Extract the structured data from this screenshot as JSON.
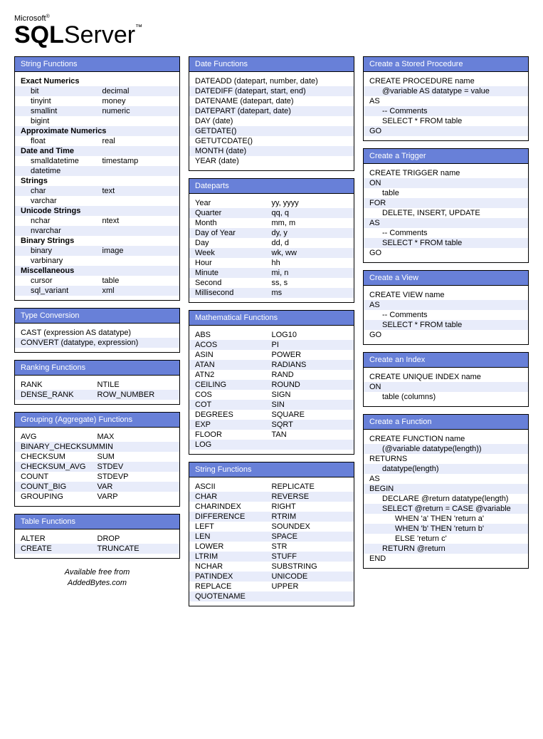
{
  "branding": {
    "ms": "Microsoft",
    "reg": "®",
    "sql": "SQL",
    "server": "Server",
    "tm": "™"
  },
  "colors": {
    "header_bg": "#6880d8",
    "stripe_bg": "#e8ecfa",
    "border": "#000000",
    "text": "#000000",
    "header_text": "#ffffff"
  },
  "columns": [
    [
      {
        "title": "String Functions",
        "groups": [
          {
            "label": "Exact Numerics",
            "rows": [
              [
                "bit",
                "decimal"
              ],
              [
                "tinyint",
                "money"
              ],
              [
                "smallint",
                "numeric"
              ],
              [
                "bigint",
                ""
              ]
            ],
            "indent": true
          },
          {
            "label": "Approximate Numerics",
            "rows": [
              [
                "float",
                "real"
              ]
            ],
            "indent": true
          },
          {
            "label": "Date and Time",
            "rows": [
              [
                "smalldatetime",
                "timestamp"
              ],
              [
                "datetime",
                ""
              ]
            ],
            "indent": true
          },
          {
            "label": "Strings",
            "rows": [
              [
                "char",
                "text"
              ],
              [
                "varchar",
                ""
              ]
            ],
            "indent": true
          },
          {
            "label": "Unicode Strings",
            "rows": [
              [
                "nchar",
                "ntext"
              ],
              [
                "nvarchar",
                ""
              ]
            ],
            "indent": true
          },
          {
            "label": "Binary Strings",
            "rows": [
              [
                "binary",
                "image"
              ],
              [
                "varbinary",
                ""
              ]
            ],
            "indent": true
          },
          {
            "label": "Miscellaneous",
            "rows": [
              [
                "cursor",
                "table"
              ],
              [
                "sql_variant",
                "xml"
              ]
            ],
            "indent": true
          }
        ]
      },
      {
        "title": "Type Conversion",
        "rows": [
          [
            "CAST (expression AS datatype)",
            ""
          ],
          [
            "CONVERT (datatype, expression)",
            ""
          ]
        ]
      },
      {
        "title": "Ranking Functions",
        "rows": [
          [
            "RANK",
            "NTILE"
          ],
          [
            "DENSE_RANK",
            "ROW_NUMBER"
          ]
        ]
      },
      {
        "title": "Grouping (Aggregate) Functions",
        "rows": [
          [
            "AVG",
            "MAX"
          ],
          [
            "BINARY_CHECKSUM",
            "MIN"
          ],
          [
            "CHECKSUM",
            "SUM"
          ],
          [
            "CHECKSUM_AVG",
            "STDEV"
          ],
          [
            "COUNT",
            "STDEVP"
          ],
          [
            "COUNT_BIG",
            "VAR"
          ],
          [
            "GROUPING",
            "VARP"
          ]
        ]
      },
      {
        "title": "Table Functions",
        "rows": [
          [
            "ALTER",
            "DROP"
          ],
          [
            "CREATE",
            "TRUNCATE"
          ]
        ]
      }
    ],
    [
      {
        "title": "Date Functions",
        "rows": [
          [
            "DATEADD (datepart, number, date)",
            ""
          ],
          [
            "DATEDIFF (datepart, start, end)",
            ""
          ],
          [
            "DATENAME (datepart, date)",
            ""
          ],
          [
            "DATEPART (datepart, date)",
            ""
          ],
          [
            "DAY (date)",
            ""
          ],
          [
            "GETDATE()",
            ""
          ],
          [
            "GETUTCDATE()",
            ""
          ],
          [
            "MONTH (date)",
            ""
          ],
          [
            "YEAR (date)",
            ""
          ]
        ]
      },
      {
        "title": "Dateparts",
        "rows": [
          [
            "Year",
            "yy, yyyy"
          ],
          [
            "Quarter",
            "qq, q"
          ],
          [
            "Month",
            "mm, m"
          ],
          [
            "Day of Year",
            "dy, y"
          ],
          [
            "Day",
            "dd, d"
          ],
          [
            "Week",
            "wk, ww"
          ],
          [
            "Hour",
            "hh"
          ],
          [
            "Minute",
            "mi, n"
          ],
          [
            "Second",
            "ss, s"
          ],
          [
            "Millisecond",
            "ms"
          ]
        ]
      },
      {
        "title": "Mathematical Functions",
        "rows": [
          [
            "ABS",
            "LOG10"
          ],
          [
            "ACOS",
            "PI"
          ],
          [
            "ASIN",
            "POWER"
          ],
          [
            "ATAN",
            "RADIANS"
          ],
          [
            "ATN2",
            "RAND"
          ],
          [
            "CEILING",
            "ROUND"
          ],
          [
            "COS",
            "SIGN"
          ],
          [
            "COT",
            "SIN"
          ],
          [
            "DEGREES",
            "SQUARE"
          ],
          [
            "EXP",
            "SQRT"
          ],
          [
            "FLOOR",
            "TAN"
          ],
          [
            "LOG",
            ""
          ]
        ]
      },
      {
        "title": "String Functions",
        "rows": [
          [
            "ASCII",
            "REPLICATE"
          ],
          [
            "CHAR",
            "REVERSE"
          ],
          [
            "CHARINDEX",
            "RIGHT"
          ],
          [
            "DIFFERENCE",
            "RTRIM"
          ],
          [
            "LEFT",
            "SOUNDEX"
          ],
          [
            "LEN",
            "SPACE"
          ],
          [
            "LOWER",
            "STR"
          ],
          [
            "LTRIM",
            "STUFF"
          ],
          [
            "NCHAR",
            "SUBSTRING"
          ],
          [
            "PATINDEX",
            "UNICODE"
          ],
          [
            "REPLACE",
            "UPPER"
          ],
          [
            "QUOTENAME",
            ""
          ]
        ]
      }
    ],
    [
      {
        "title": "Create a Stored Procedure",
        "lines": [
          {
            "t": "CREATE PROCEDURE name",
            "i": 0
          },
          {
            "t": "@variable AS datatype = value",
            "i": 1
          },
          {
            "t": "AS",
            "i": 0
          },
          {
            "t": "-- Comments",
            "i": 1
          },
          {
            "t": "SELECT * FROM table",
            "i": 1
          },
          {
            "t": "GO",
            "i": 0
          }
        ]
      },
      {
        "title": "Create a Trigger",
        "lines": [
          {
            "t": "CREATE TRIGGER name",
            "i": 0
          },
          {
            "t": "ON",
            "i": 0
          },
          {
            "t": "table",
            "i": 1
          },
          {
            "t": "FOR",
            "i": 0
          },
          {
            "t": "DELETE, INSERT, UPDATE",
            "i": 1
          },
          {
            "t": "AS",
            "i": 0
          },
          {
            "t": "-- Comments",
            "i": 1
          },
          {
            "t": "SELECT * FROM table",
            "i": 1
          },
          {
            "t": "GO",
            "i": 0
          }
        ]
      },
      {
        "title": "Create a View",
        "lines": [
          {
            "t": "CREATE VIEW name",
            "i": 0
          },
          {
            "t": "AS",
            "i": 0
          },
          {
            "t": "-- Comments",
            "i": 1
          },
          {
            "t": "SELECT * FROM table",
            "i": 1
          },
          {
            "t": "GO",
            "i": 0
          }
        ]
      },
      {
        "title": "Create an Index",
        "lines": [
          {
            "t": "CREATE UNIQUE INDEX name",
            "i": 0
          },
          {
            "t": "ON",
            "i": 0
          },
          {
            "t": "table (columns)",
            "i": 1
          }
        ]
      },
      {
        "title": "Create a Function",
        "lines": [
          {
            "t": "CREATE FUNCTION name",
            "i": 0
          },
          {
            "t": "(@variable datatype(length))",
            "i": 1
          },
          {
            "t": "RETURNS",
            "i": 0
          },
          {
            "t": "datatype(length)",
            "i": 1
          },
          {
            "t": "AS",
            "i": 0
          },
          {
            "t": "BEGIN",
            "i": 0
          },
          {
            "t": "DECLARE @return datatype(length)",
            "i": 1
          },
          {
            "t": "SELECT @return = CASE @variable",
            "i": 1
          },
          {
            "t": "WHEN 'a' THEN 'return a'",
            "i": 2
          },
          {
            "t": "WHEN 'b' THEN 'return b'",
            "i": 2
          },
          {
            "t": "ELSE 'return c'",
            "i": 2
          },
          {
            "t": "RETURN @return",
            "i": 1
          },
          {
            "t": "END",
            "i": 0
          }
        ]
      }
    ]
  ],
  "footer": {
    "line1": "Available free from",
    "line2": "AddedBytes.com"
  }
}
